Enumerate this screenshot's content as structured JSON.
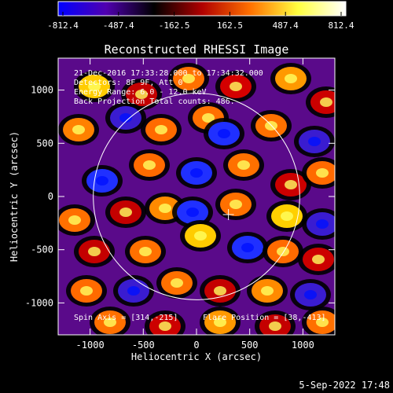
{
  "colorbar": {
    "labels": [
      "-812.4",
      "-487.4",
      "-162.5",
      "162.5",
      "487.4",
      "812.4"
    ],
    "stops": [
      "#0000ff",
      "#5000b0",
      "#000000",
      "#b00000",
      "#ff7000",
      "#ffff40",
      "#ffffff"
    ]
  },
  "title": "Reconstructed RHESSI Image",
  "info_lines": [
    "21-Dec-2016 17:33:28.000 to 17:34:32.000",
    "Detectors: 8F 9F, Att 0",
    "Energy Range: 6.0 - 12.0 keV",
    "Back Projection    Total counts: 486."
  ],
  "x_axis": {
    "label": "Heliocentric X (arcsec)",
    "ticks": [
      -1000,
      -500,
      0,
      500,
      1000
    ],
    "tick_labels": [
      "-1000",
      "-500",
      "0",
      "500",
      "1000"
    ],
    "range": [
      -1300,
      1300
    ]
  },
  "y_axis": {
    "label": "Heliocentric Y (arcsec)",
    "ticks": [
      -1000,
      -500,
      0,
      500,
      1000
    ],
    "tick_labels": [
      "-1000",
      "-500",
      "0",
      "500",
      "1000"
    ],
    "range": [
      -1300,
      1300
    ]
  },
  "spin_axis": "Spin Axis = [314,-215]",
  "flare_position": "Flare Position = [38,-413]",
  "flare_marker": {
    "x": 300,
    "y": -170
  },
  "solar_limb": {
    "x": 0,
    "y": 0,
    "r": 970
  },
  "date_stamp": "5-Sep-2022 17:48"
}
